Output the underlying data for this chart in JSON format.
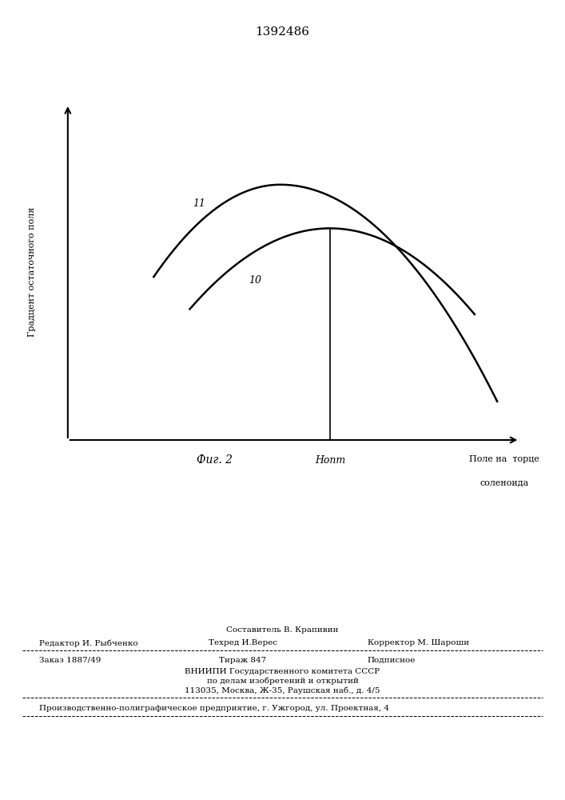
{
  "title": "1392486",
  "fig_label": "Фиг. 2",
  "ylabel": "Градцент остаточного поля",
  "xlabel_line1": "Поле на  торце",
  "xlabel_line2": "соленоида",
  "hopt_label": "Нопт",
  "curve11_label": "11",
  "curve10_label": "10",
  "background_color": "#ffffff",
  "curve_color": "#000000",
  "footer_line1": "Составитель В. Крапивин",
  "footer_line2_left": "Редактор И. Рыбченко",
  "footer_line2_mid": "Техред И.Верес",
  "footer_line2_right": "Корректор М. Шароши",
  "footer_line3_left": "Заказ 1887/49",
  "footer_line3_mid": "Тираж 847",
  "footer_line3_right": "Подписное",
  "footer_line4": "ВНИИПИ Государственного комитета СССР",
  "footer_line5": "по делам изобретений и открытий",
  "footer_line6": "113035, Москва, Ж-35, Раушская наб., д. 4/5",
  "footer_line7": "Производственно-полиграфическое предприятие, г. Ужгород, ул. Проектная, 4"
}
